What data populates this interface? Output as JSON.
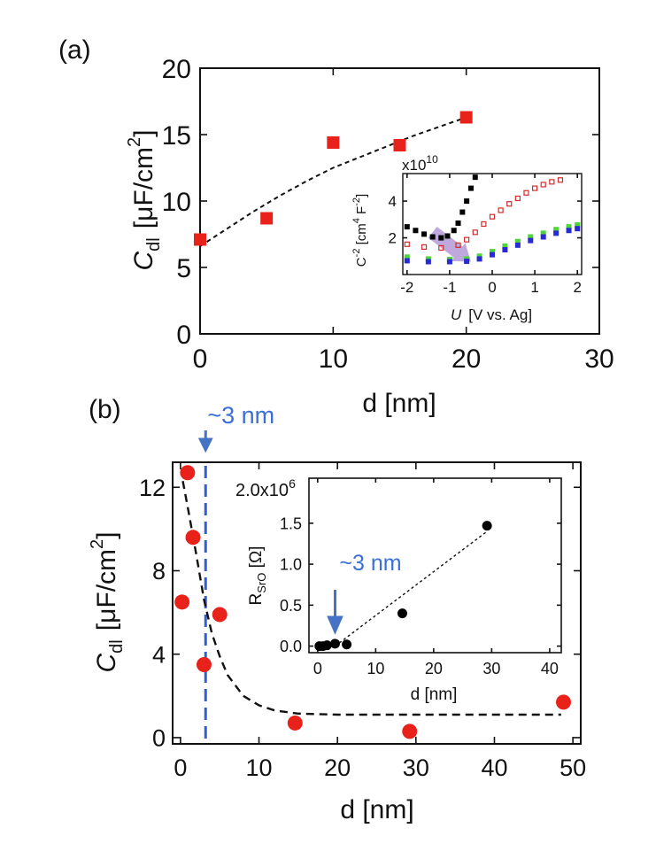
{
  "colors": {
    "red": "#e8221b",
    "black": "#000000",
    "blue_annot": "#3a6fd8",
    "dashed_blue": "#2e5fd4",
    "arrow_blue": "#4472c4",
    "inset_red": "#d42a2a",
    "inset_green": "#4cd63a",
    "inset_blue": "#2a2ad4",
    "purple": "#b49ad6"
  },
  "chart_data": [
    {
      "panel": "(a)",
      "type": "scatter",
      "xlabel": "d [nm]",
      "ylabel_main": "C",
      "ylabel_sub": "dl",
      "ylabel_unit": "[μF/cm",
      "ylabel_sup": "2",
      "ylabel_end": "]",
      "xlim": [
        0,
        30
      ],
      "ylim": [
        0,
        20
      ],
      "xticks": [
        "0",
        "10",
        "20",
        "30"
      ],
      "yticks": [
        "0",
        "5",
        "10",
        "15",
        "20"
      ],
      "series": [
        {
          "marker": "square",
          "x": [
            0,
            5,
            10,
            15,
            20
          ],
          "y": [
            7.1,
            8.7,
            14.4,
            14.2,
            16.3
          ]
        }
      ],
      "fit_curve": {
        "style": "dashed",
        "x": [
          0,
          2,
          4,
          6,
          8,
          10,
          12,
          14,
          16,
          18,
          20
        ],
        "y": [
          6.6,
          7.9,
          9.2,
          10.4,
          11.5,
          12.5,
          13.3,
          14.1,
          14.9,
          15.6,
          16.3
        ]
      }
    },
    {
      "panel": "(a) inset",
      "type": "scatter",
      "xlabel_main": "U",
      "xlabel_rest": "[V vs. Ag]",
      "ylabel_parts": [
        "C",
        "-2",
        " [cm",
        "4",
        " F",
        "-2",
        "]"
      ],
      "multiplier": "x10",
      "multiplier_exp": "10",
      "xlim": [
        -2.1,
        2.1
      ],
      "ylim": [
        0,
        5.5
      ],
      "xticks": [
        "-2",
        "-1",
        "0",
        "1",
        "2"
      ],
      "yticks": [
        "2",
        "4"
      ],
      "series": [
        {
          "color": "black",
          "marker": "square-filled",
          "x": [
            -2.0,
            -1.8,
            -1.6,
            -1.4,
            -1.2,
            -1.05,
            -0.9,
            -0.8,
            -0.7,
            -0.6,
            -0.5,
            -0.4
          ],
          "y": [
            2.6,
            2.4,
            2.2,
            2.05,
            2.0,
            2.1,
            2.4,
            2.8,
            3.4,
            4.0,
            4.7,
            5.3
          ]
        },
        {
          "color": "red",
          "marker": "square-open",
          "x": [
            -2.0,
            -1.6,
            -1.2,
            -0.8,
            -0.6,
            -0.4,
            -0.2,
            0.0,
            0.2,
            0.4,
            0.6,
            0.8,
            1.0,
            1.2,
            1.4,
            1.6
          ],
          "y": [
            1.65,
            1.5,
            1.45,
            1.6,
            1.9,
            2.3,
            2.75,
            3.15,
            3.5,
            3.85,
            4.15,
            4.45,
            4.7,
            4.9,
            5.05,
            5.15
          ]
        },
        {
          "color": "green",
          "marker": "square-filled",
          "x": [
            -2.0,
            -1.5,
            -1.0,
            -0.6,
            -0.3,
            0.0,
            0.3,
            0.6,
            0.9,
            1.2,
            1.5,
            1.8,
            2.0
          ],
          "y": [
            0.95,
            0.85,
            0.82,
            0.85,
            1.0,
            1.25,
            1.55,
            1.8,
            2.05,
            2.25,
            2.45,
            2.6,
            2.7
          ]
        },
        {
          "color": "blue",
          "marker": "square-filled",
          "x": [
            -2.0,
            -1.5,
            -1.0,
            -0.6,
            -0.3,
            0.0,
            0.3,
            0.6,
            0.9,
            1.2,
            1.5,
            1.8,
            2.0
          ],
          "y": [
            0.75,
            0.7,
            0.7,
            0.72,
            0.85,
            1.08,
            1.35,
            1.6,
            1.85,
            2.05,
            2.25,
            2.4,
            2.5
          ]
        }
      ],
      "highlight_arrow": {
        "from": [
          -1.4,
          2.3
        ],
        "to": [
          -0.5,
          0.7
        ]
      }
    },
    {
      "panel": "(b)",
      "type": "scatter",
      "xlabel": "d [nm]",
      "ylabel_main": "C",
      "ylabel_sub": "dl",
      "ylabel_unit": "[μF/cm",
      "ylabel_sup": "2",
      "ylabel_end": "]",
      "xlim": [
        -1,
        51
      ],
      "ylim": [
        -0.3,
        13.2
      ],
      "xticks": [
        "0",
        "10",
        "20",
        "30",
        "40",
        "50"
      ],
      "yticks": [
        "0",
        "4",
        "8",
        "12"
      ],
      "series": [
        {
          "marker": "circle",
          "x": [
            0.2,
            0.9,
            1.6,
            3.0,
            5.0,
            14.6,
            29.2,
            48.8
          ],
          "y": [
            6.5,
            12.7,
            9.6,
            3.5,
            5.9,
            0.7,
            0.3,
            1.7
          ]
        }
      ],
      "fit_curve": {
        "style": "dashed",
        "x": [
          0.3,
          1,
          2,
          3,
          4,
          5,
          6,
          8,
          10,
          12,
          15,
          20,
          30,
          40,
          48.5
        ],
        "y": [
          12.3,
          10.9,
          8.8,
          6.6,
          5.0,
          3.9,
          3.0,
          2.0,
          1.55,
          1.3,
          1.15,
          1.1,
          1.1,
          1.1,
          1.1
        ]
      },
      "vline_x": 3.2,
      "annotation": "~3 nm"
    },
    {
      "panel": "(b) inset",
      "type": "scatter",
      "xlabel": "d [nm]",
      "ylabel_main": "R",
      "ylabel_sub": "SrO",
      "ylabel_unit": " [Ω]",
      "xlim": [
        -1.5,
        42
      ],
      "ylim": [
        -0.08,
        2.05
      ],
      "xticks": [
        "0",
        "10",
        "20",
        "30",
        "40"
      ],
      "yticks": [
        "0.0",
        "0.5",
        "1.0",
        "1.5"
      ],
      "ytop_label": "2.0x10",
      "ytop_exp": "6",
      "series": [
        {
          "marker": "circle",
          "x": [
            0.3,
            0.9,
            1.6,
            3.0,
            5.0,
            14.6,
            29.2
          ],
          "y": [
            0.0,
            0.0,
            0.01,
            0.03,
            0.02,
            0.4,
            1.47
          ]
        }
      ],
      "fit_line": {
        "style": "dotted",
        "x": [
          3.0,
          29.2
        ],
        "y": [
          0.0,
          1.4
        ]
      },
      "annotation": "~3 nm",
      "arrow_x": 3.0
    }
  ],
  "panel_labels": {
    "a": "(a)",
    "b": "(b)"
  }
}
